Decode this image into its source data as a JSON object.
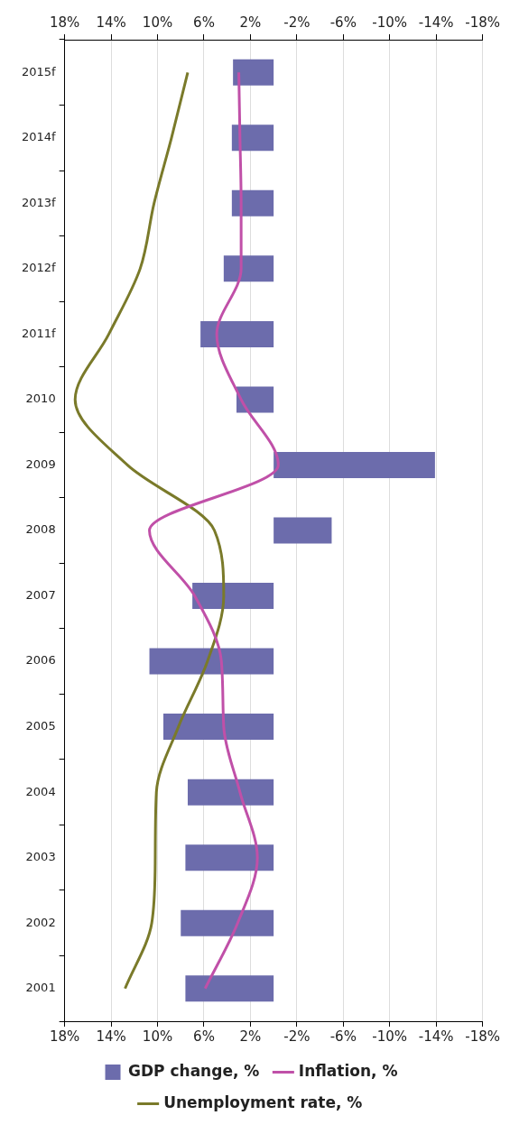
{
  "chart_data": {
    "type": "bar",
    "orientation": "horizontal",
    "categories": [
      "2015f",
      "2014f",
      "2013f",
      "2012f",
      "2011f",
      "2010",
      "2009",
      "2008",
      "2007",
      "2006",
      "2005",
      "2004",
      "2003",
      "2002",
      "2001"
    ],
    "series": [
      {
        "name": "GDP change, %",
        "color": "#6c6cac",
        "values": [
          3.5,
          3.6,
          3.6,
          4.3,
          6.3,
          3.2,
          -13.9,
          -5.0,
          7.0,
          10.7,
          9.5,
          7.4,
          7.6,
          8.0,
          7.6
        ]
      },
      {
        "name": "Inflation, %",
        "type": "line",
        "color": "#c050a8",
        "values": [
          3.0,
          2.9,
          2.8,
          2.8,
          4.9,
          2.8,
          -0.4,
          10.7,
          6.8,
          4.5,
          4.3,
          2.9,
          1.4,
          3.1,
          5.9
        ]
      },
      {
        "name": "Unemployment rate, %",
        "type": "line",
        "color": "#7a7a2a",
        "values": [
          7.4,
          8.8,
          10.3,
          11.5,
          14.2,
          17.1,
          12.6,
          5.1,
          4.3,
          5.7,
          8.2,
          10.1,
          10.2,
          10.5,
          12.8
        ]
      }
    ],
    "xlim": [
      18,
      -18
    ],
    "xticks": [
      {
        "value": 18,
        "label": "18%"
      },
      {
        "value": 14,
        "label": "14%"
      },
      {
        "value": 10,
        "label": "10%"
      },
      {
        "value": 6,
        "label": "6%"
      },
      {
        "value": 2,
        "label": "2%"
      },
      {
        "value": -2,
        "label": "-2%"
      },
      {
        "value": -6,
        "label": "-6%"
      },
      {
        "value": -10,
        "label": "-10%"
      },
      {
        "value": -14,
        "label": "-14%"
      },
      {
        "value": -18,
        "label": "-18%"
      }
    ],
    "x2lim": [
      18,
      -18
    ],
    "x2ticks": [
      {
        "value": 18,
        "label": "18%"
      },
      {
        "value": 14,
        "label": "14%"
      },
      {
        "value": 10,
        "label": "10%"
      },
      {
        "value": 6,
        "label": "6%"
      },
      {
        "value": 2,
        "label": "2%"
      },
      {
        "value": -2,
        "label": "-2%"
      },
      {
        "value": -6,
        "label": "-6%"
      },
      {
        "value": -10,
        "label": "-10%"
      },
      {
        "value": -14,
        "label": "-14%"
      },
      {
        "value": -18,
        "label": "-18%"
      }
    ],
    "grid": "x",
    "legend": "bottom",
    "marker": "none",
    "line_style": "solid"
  }
}
